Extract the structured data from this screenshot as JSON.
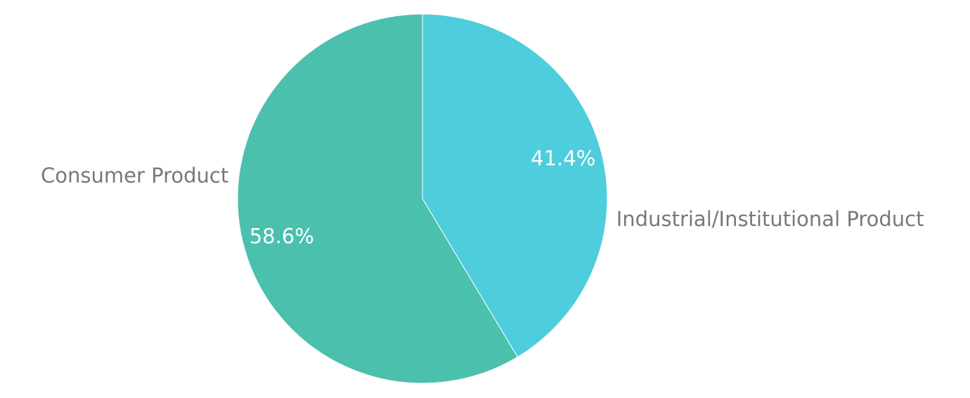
{
  "chart_data": {
    "type": "pie",
    "categories": [
      "Industrial/Institutional Product",
      "Consumer Product"
    ],
    "values": [
      41.4,
      58.6
    ],
    "value_labels": [
      "41.4%",
      "58.6%"
    ],
    "colors": [
      "#4ecddc",
      "#4bc0ad"
    ]
  }
}
